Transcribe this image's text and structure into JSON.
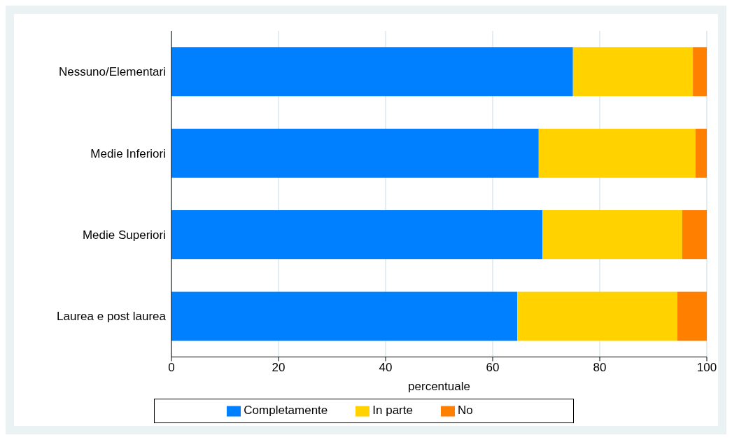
{
  "chart_data": {
    "type": "bar",
    "orientation": "horizontal",
    "stacked": true,
    "categories": [
      "Nessuno/Elementari",
      "Medie Inferiori",
      "Medie Superiori",
      "Laurea e post laurea"
    ],
    "series": [
      {
        "name": "Completamente",
        "color": "#0080ff",
        "values": [
          75.0,
          68.6,
          69.3,
          64.6
        ]
      },
      {
        "name": "In parte",
        "color": "#ffd200",
        "values": [
          22.4,
          29.3,
          26.1,
          29.9
        ]
      },
      {
        "name": "No",
        "color": "#ff7f00",
        "values": [
          2.6,
          2.1,
          4.6,
          5.5
        ]
      }
    ],
    "xlabel": "percentuale",
    "xlim": [
      0,
      100
    ],
    "xticks": [
      0,
      20,
      40,
      60,
      80,
      100
    ],
    "grid": "x",
    "legend": "bottom"
  }
}
